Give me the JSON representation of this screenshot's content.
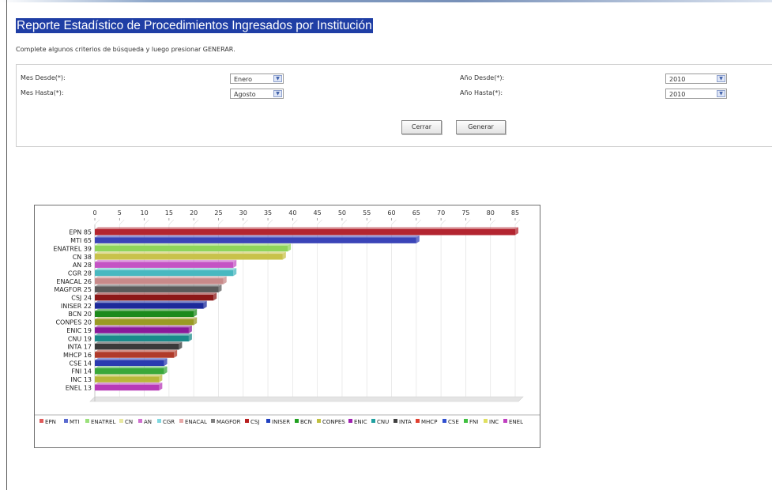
{
  "page": {
    "title": "Reporte Estadístico de Procedimientos Ingresados por Institución",
    "instructions": "Complete algunos criterios de búsqueda y luego presionar GENERAR."
  },
  "filters": {
    "mes_desde_label": "Mes Desde(*):",
    "mes_desde_value": "Enero",
    "mes_hasta_label": "Mes Hasta(*):",
    "mes_hasta_value": "Agosto",
    "anio_desde_label": "Año Desde(*):",
    "anio_desde_value": "2010",
    "anio_hasta_label": "Año Hasta(*):",
    "anio_hasta_value": "2010"
  },
  "buttons": {
    "cerrar": "Cerrar",
    "generar": "Generar"
  },
  "chart_data": {
    "type": "bar",
    "orientation": "horizontal",
    "categories": [
      "EPN 85",
      "MTI 65",
      "ENATREL 39",
      "CN 38",
      "AN 28",
      "CGR 28",
      "ENACAL 26",
      "MAGFOR 25",
      "CSJ 24",
      "INISER 22",
      "BCN 20",
      "CONPES 20",
      "ENIC 19",
      "CNU 19",
      "INTA 17",
      "MHCP 16",
      "CSE 14",
      "FNI 14",
      "INC 13",
      "ENEL 13"
    ],
    "values": [
      85,
      65,
      39,
      38,
      28,
      28,
      26,
      25,
      24,
      22,
      20,
      20,
      19,
      19,
      17,
      16,
      14,
      14,
      13,
      13
    ],
    "xticks": [
      "0",
      "5",
      "10",
      "15",
      "20",
      "25",
      "30",
      "35",
      "40",
      "45",
      "50",
      "55",
      "60",
      "65",
      "70",
      "75",
      "80",
      "85"
    ],
    "xlim": [
      0,
      85
    ],
    "grid": true,
    "legend_position": "bottom",
    "legend": [
      "EPN",
      "MTI",
      "ENATREL",
      "CN",
      "AN",
      "CGR",
      "ENACAL",
      "MAGFOR",
      "CSJ",
      "INISER",
      "BCN",
      "CONPES",
      "ENIC",
      "CNU",
      "INTA",
      "MHCP",
      "CSE",
      "FNI",
      "INC",
      "ENEL"
    ],
    "colors": [
      "#b32530",
      "#3a44b8",
      "#8ed45a",
      "#c8c24a",
      "#c453c4",
      "#48b8c0",
      "#c88a8a",
      "#5a5a5a",
      "#8c1818",
      "#1c2a9a",
      "#1c8a1c",
      "#9a9a24",
      "#8a1a9a",
      "#1a8a8a",
      "#3a3a3a",
      "#b03a2a",
      "#2a3ab0",
      "#3aa83a",
      "#b8b83a",
      "#b83ab8"
    ],
    "legend_colors": [
      "#e05a5a",
      "#5a6ad0",
      "#9ae07a",
      "#e8e8a0",
      "#d070d0",
      "#80d8e0",
      "#e8a8a8",
      "#808080",
      "#b82020",
      "#2040c0",
      "#20a020",
      "#c0c040",
      "#a020b0",
      "#20a0a0",
      "#404040",
      "#e04030",
      "#3050d0",
      "#40c040",
      "#e0e060",
      "#c040c0"
    ]
  }
}
